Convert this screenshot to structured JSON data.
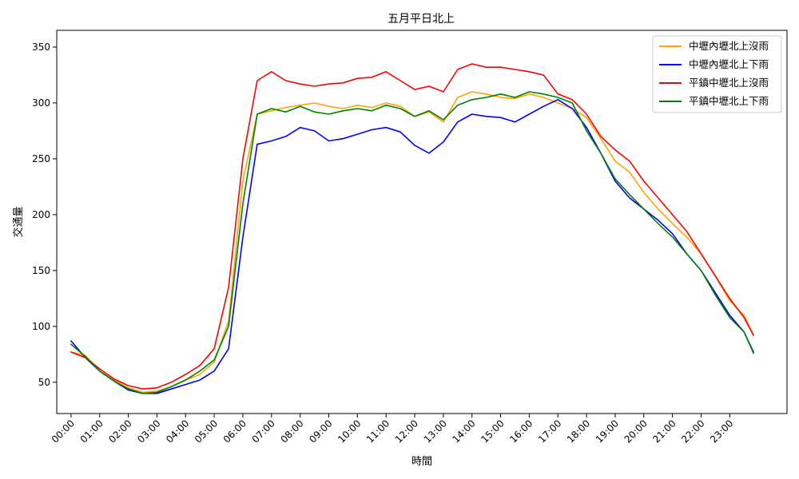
{
  "chart_data": {
    "type": "line",
    "title": "五月平日北上",
    "xlabel": "時間",
    "ylabel": "交通量",
    "x_tick_labels": [
      "00:00",
      "01:00",
      "02:00",
      "03:00",
      "04:00",
      "05:00",
      "06:00",
      "07:00",
      "08:00",
      "09:00",
      "10:00",
      "11:00",
      "12:00",
      "13:00",
      "14:00",
      "15:00",
      "16:00",
      "17:00",
      "18:00",
      "19:00",
      "20:00",
      "21:00",
      "22:00",
      "23:00"
    ],
    "x_range_hours": [
      -0.5,
      25.0
    ],
    "ylim": [
      22,
      365
    ],
    "y_ticks": [
      50,
      100,
      150,
      200,
      250,
      300,
      350
    ],
    "grid": false,
    "legend_position": "top-right",
    "series": [
      {
        "name": "中壢內壢北上沒雨",
        "color": "#ffa500",
        "points": [
          [
            0,
            77
          ],
          [
            0.5,
            74
          ],
          [
            1,
            60
          ],
          [
            1.5,
            52
          ],
          [
            2,
            45
          ],
          [
            2.5,
            41
          ],
          [
            3,
            42
          ],
          [
            3.5,
            46
          ],
          [
            4,
            52
          ],
          [
            4.5,
            57
          ],
          [
            5,
            68
          ],
          [
            5.5,
            105
          ],
          [
            6,
            230
          ],
          [
            6.5,
            290
          ],
          [
            7,
            293
          ],
          [
            7.5,
            296
          ],
          [
            8,
            298
          ],
          [
            8.5,
            300
          ],
          [
            9,
            297
          ],
          [
            9.5,
            295
          ],
          [
            10,
            298
          ],
          [
            10.5,
            296
          ],
          [
            11,
            300
          ],
          [
            11.5,
            297
          ],
          [
            12,
            288
          ],
          [
            12.5,
            292
          ],
          [
            13,
            283
          ],
          [
            13.5,
            305
          ],
          [
            14,
            310
          ],
          [
            14.5,
            308
          ],
          [
            15,
            305
          ],
          [
            15.5,
            304
          ],
          [
            16,
            308
          ],
          [
            16.5,
            305
          ],
          [
            17,
            300
          ],
          [
            17.5,
            295
          ],
          [
            18,
            287
          ],
          [
            18.5,
            268
          ],
          [
            19,
            248
          ],
          [
            19.5,
            238
          ],
          [
            20,
            220
          ],
          [
            20.5,
            205
          ],
          [
            21,
            192
          ],
          [
            21.5,
            180
          ],
          [
            22,
            165
          ],
          [
            22.5,
            145
          ],
          [
            23,
            123
          ],
          [
            23.5,
            110
          ],
          [
            23.83,
            92
          ]
        ]
      },
      {
        "name": "中壢內壢北上下雨",
        "color": "#0000ff",
        "points": [
          [
            0,
            87
          ],
          [
            0.5,
            72
          ],
          [
            1,
            60
          ],
          [
            1.5,
            51
          ],
          [
            2,
            43
          ],
          [
            2.5,
            40
          ],
          [
            3,
            40
          ],
          [
            3.5,
            44
          ],
          [
            4,
            48
          ],
          [
            4.5,
            52
          ],
          [
            5,
            60
          ],
          [
            5.5,
            80
          ],
          [
            6,
            180
          ],
          [
            6.5,
            263
          ],
          [
            7,
            266
          ],
          [
            7.5,
            270
          ],
          [
            8,
            278
          ],
          [
            8.5,
            275
          ],
          [
            9,
            266
          ],
          [
            9.5,
            268
          ],
          [
            10,
            272
          ],
          [
            10.5,
            276
          ],
          [
            11,
            278
          ],
          [
            11.5,
            274
          ],
          [
            12,
            262
          ],
          [
            12.5,
            255
          ],
          [
            13,
            265
          ],
          [
            13.5,
            283
          ],
          [
            14,
            290
          ],
          [
            14.5,
            288
          ],
          [
            15,
            287
          ],
          [
            15.5,
            283
          ],
          [
            16,
            290
          ],
          [
            16.5,
            297
          ],
          [
            17,
            303
          ],
          [
            17.5,
            295
          ],
          [
            18,
            278
          ],
          [
            18.5,
            255
          ],
          [
            19,
            230
          ],
          [
            19.5,
            215
          ],
          [
            20,
            205
          ],
          [
            20.5,
            195
          ],
          [
            21,
            183
          ],
          [
            21.5,
            165
          ],
          [
            22,
            150
          ],
          [
            22.5,
            130
          ],
          [
            23,
            110
          ],
          [
            23.5,
            95
          ],
          [
            23.83,
            77
          ]
        ]
      },
      {
        "name": "平鎮中壢北上沒雨",
        "color": "#ff0000",
        "points": [
          [
            0,
            77
          ],
          [
            0.5,
            72
          ],
          [
            1,
            62
          ],
          [
            1.5,
            53
          ],
          [
            2,
            47
          ],
          [
            2.5,
            44
          ],
          [
            3,
            45
          ],
          [
            3.5,
            50
          ],
          [
            4,
            57
          ],
          [
            4.5,
            65
          ],
          [
            5,
            80
          ],
          [
            5.5,
            135
          ],
          [
            6,
            250
          ],
          [
            6.5,
            320
          ],
          [
            7,
            328
          ],
          [
            7.5,
            320
          ],
          [
            8,
            317
          ],
          [
            8.5,
            315
          ],
          [
            9,
            317
          ],
          [
            9.5,
            318
          ],
          [
            10,
            322
          ],
          [
            10.5,
            323
          ],
          [
            11,
            328
          ],
          [
            11.5,
            320
          ],
          [
            12,
            312
          ],
          [
            12.5,
            315
          ],
          [
            13,
            310
          ],
          [
            13.5,
            330
          ],
          [
            14,
            335
          ],
          [
            14.5,
            332
          ],
          [
            15,
            332
          ],
          [
            15.5,
            330
          ],
          [
            16,
            328
          ],
          [
            16.5,
            325
          ],
          [
            17,
            308
          ],
          [
            17.5,
            303
          ],
          [
            18,
            290
          ],
          [
            18.5,
            270
          ],
          [
            19,
            258
          ],
          [
            19.5,
            248
          ],
          [
            20,
            230
          ],
          [
            20.5,
            215
          ],
          [
            21,
            200
          ],
          [
            21.5,
            185
          ],
          [
            22,
            165
          ],
          [
            22.5,
            145
          ],
          [
            23,
            125
          ],
          [
            23.5,
            108
          ],
          [
            23.83,
            92
          ]
        ]
      },
      {
        "name": "平鎮中壢北上下雨",
        "color": "#008000",
        "points": [
          [
            0,
            84
          ],
          [
            0.5,
            73
          ],
          [
            1,
            60
          ],
          [
            1.5,
            51
          ],
          [
            2,
            44
          ],
          [
            2.5,
            40
          ],
          [
            3,
            41
          ],
          [
            3.5,
            46
          ],
          [
            4,
            52
          ],
          [
            4.5,
            60
          ],
          [
            5,
            70
          ],
          [
            5.5,
            100
          ],
          [
            6,
            210
          ],
          [
            6.5,
            290
          ],
          [
            7,
            295
          ],
          [
            7.5,
            292
          ],
          [
            8,
            297
          ],
          [
            8.5,
            292
          ],
          [
            9,
            290
          ],
          [
            9.5,
            293
          ],
          [
            10,
            295
          ],
          [
            10.5,
            293
          ],
          [
            11,
            298
          ],
          [
            11.5,
            295
          ],
          [
            12,
            288
          ],
          [
            12.5,
            293
          ],
          [
            13,
            285
          ],
          [
            13.5,
            298
          ],
          [
            14,
            303
          ],
          [
            14.5,
            305
          ],
          [
            15,
            308
          ],
          [
            15.5,
            305
          ],
          [
            16,
            310
          ],
          [
            16.5,
            308
          ],
          [
            17,
            305
          ],
          [
            17.5,
            300
          ],
          [
            18,
            275
          ],
          [
            18.5,
            255
          ],
          [
            19,
            232
          ],
          [
            19.5,
            218
          ],
          [
            20,
            205
          ],
          [
            20.5,
            192
          ],
          [
            21,
            180
          ],
          [
            21.5,
            165
          ],
          [
            22,
            150
          ],
          [
            22.5,
            128
          ],
          [
            23,
            108
          ],
          [
            23.5,
            95
          ],
          [
            23.83,
            76
          ]
        ]
      }
    ]
  }
}
